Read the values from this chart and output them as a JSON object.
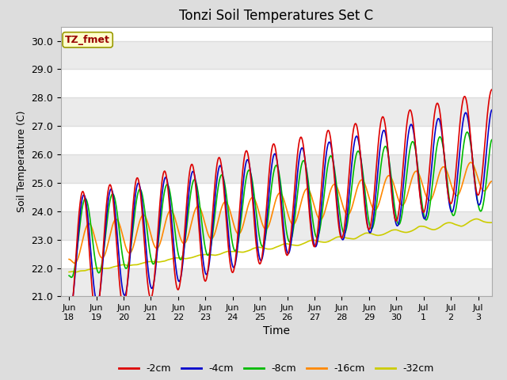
{
  "title": "Tonzi Soil Temperatures Set C",
  "xlabel": "Time",
  "ylabel": "Soil Temperature (C)",
  "ylim": [
    21.0,
    30.5
  ],
  "yticks": [
    21.0,
    22.0,
    23.0,
    24.0,
    25.0,
    26.0,
    27.0,
    28.0,
    29.0,
    30.0
  ],
  "series_colors": [
    "#dd0000",
    "#0000cc",
    "#00bb00",
    "#ff8800",
    "#cccc00"
  ],
  "series_labels": [
    "-2cm",
    "-4cm",
    "-8cm",
    "-16cm",
    "-32cm"
  ],
  "annotation_text": "TZ_fmet",
  "background_color": "#dddddd",
  "plot_bg_color": "#ffffff",
  "grid_color": "#dddddd",
  "xtick_labels": [
    "Jun\n18",
    "Jun\n19",
    "Jun\n20",
    "Jun\n21",
    "Jun\n22",
    "Jun\n23",
    "Jun\n24",
    "Jun\n25",
    "Jun\n26",
    "Jun\n27",
    "Jun\n28",
    "Jun\n29",
    "Jun\n30",
    "Jul\n1",
    "Jul\n2",
    "Jul\n3"
  ],
  "num_days": 15.5,
  "lw": 1.2
}
